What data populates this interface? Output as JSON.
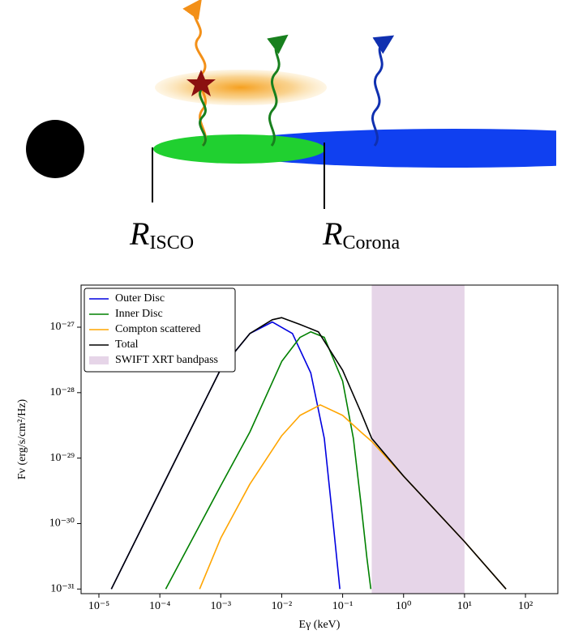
{
  "diagram": {
    "labels": [
      {
        "symbol": "R",
        "subscript": "ISCO"
      },
      {
        "symbol": "R",
        "subscript": "Corona"
      }
    ]
  },
  "chart_data": {
    "type": "line",
    "xlabel": "Eγ (keV)",
    "ylabel": "Fν (erg/s/cm²/Hz)",
    "xscale": "log",
    "yscale": "log",
    "grid": false,
    "legend": "upper left",
    "xlim": [
      5.1e-06,
      340
    ],
    "ylim": [
      8.5e-32,
      4.4e-27
    ],
    "xticks": [
      {
        "value": 1e-05,
        "label": "10⁻⁵"
      },
      {
        "value": 0.0001,
        "label": "10⁻⁴"
      },
      {
        "value": 0.001,
        "label": "10⁻³"
      },
      {
        "value": 0.01,
        "label": "10⁻²"
      },
      {
        "value": 0.1,
        "label": "10⁻¹"
      },
      {
        "value": 1,
        "label": "10⁰"
      },
      {
        "value": 10,
        "label": "10¹"
      },
      {
        "value": 100,
        "label": "10²"
      }
    ],
    "yticks": [
      {
        "value": 1e-31,
        "label": "10⁻³¹"
      },
      {
        "value": 1e-30,
        "label": "10⁻³⁰"
      },
      {
        "value": 1e-29,
        "label": "10⁻²⁹"
      },
      {
        "value": 1e-28,
        "label": "10⁻²⁸"
      },
      {
        "value": 1e-27,
        "label": "10⁻²⁷"
      }
    ],
    "series": [
      {
        "name": "Outer Disc",
        "color": "#0000e0",
        "x": [
          1.6e-05,
          0.0001,
          0.001,
          0.003,
          0.007,
          0.015,
          0.03,
          0.05,
          0.07,
          0.09
        ],
        "values": [
          1e-31,
          3.1e-30,
          2.3e-28,
          8e-28,
          1.2e-27,
          8e-28,
          2e-28,
          2e-29,
          1e-30,
          1e-31
        ]
      },
      {
        "name": "Inner Disc",
        "color": "#008000",
        "x": [
          0.000125,
          0.001,
          0.003,
          0.01,
          0.02,
          0.03,
          0.05,
          0.1,
          0.15,
          0.2,
          0.25,
          0.29
        ],
        "values": [
          1e-31,
          3.8e-30,
          2.5e-29,
          3e-28,
          7e-28,
          8.5e-28,
          7e-28,
          1.5e-28,
          2e-29,
          2e-30,
          3e-31,
          1e-31
        ]
      },
      {
        "name": "Compton scattered",
        "color": "#ffa500",
        "x": [
          0.00045,
          0.001,
          0.003,
          0.01,
          0.02,
          0.043,
          0.1,
          0.2,
          0.3,
          1,
          10,
          48
        ],
        "values": [
          1e-31,
          6e-31,
          4e-30,
          2.2e-29,
          4.5e-29,
          6.5e-29,
          4.5e-29,
          2.5e-29,
          1.8e-29,
          5.3e-30,
          5.3e-31,
          1e-31
        ]
      },
      {
        "name": "Total",
        "color": "#000000",
        "x": [
          1.6e-05,
          0.0001,
          0.001,
          0.003,
          0.007,
          0.01,
          0.02,
          0.04,
          0.1,
          0.2,
          0.3,
          1,
          10,
          48
        ],
        "values": [
          1e-31,
          3.1e-30,
          2.3e-28,
          8e-28,
          1.3e-27,
          1.4e-27,
          1.1e-27,
          8.5e-28,
          2.2e-28,
          5e-29,
          2e-29,
          5.3e-30,
          5.3e-31,
          1e-31
        ]
      }
    ],
    "band": {
      "name": "SWIFT XRT bandpass",
      "color": "#e6d5e8",
      "xrange": [
        0.3,
        10
      ]
    }
  }
}
